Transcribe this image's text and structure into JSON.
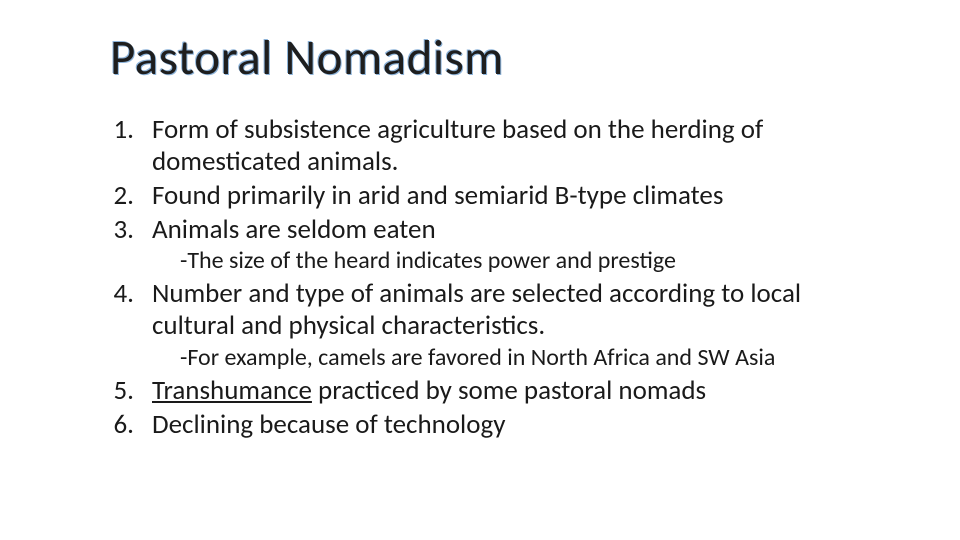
{
  "slide": {
    "title": "Pastoral Nomadism",
    "items": [
      {
        "number": "1.",
        "text": "Form of subsistence agriculture based on the herding of domesticated animals."
      },
      {
        "number": "2.",
        "text": "Found primarily in arid and semiarid B-type climates"
      },
      {
        "number": "3.",
        "text": "Animals are seldom eaten"
      }
    ],
    "sub1": "-The size of the heard indicates power and prestige",
    "items2": [
      {
        "number": "4.",
        "text": "Number and type of animals are selected according to local cultural and physical characteristics."
      }
    ],
    "sub2": "-For example, camels are favored in North Africa and SW Asia",
    "items3_prefix": {
      "number": "5."
    },
    "items3_underline": "Transhumance",
    "items3_suffix": " practiced by some pastoral nomads",
    "items4": [
      {
        "number": "6.",
        "text": "Declining because of technology"
      }
    ],
    "colors": {
      "background": "#ffffff",
      "title_text": "#1e1e1e",
      "title_outline": "#8db3d9",
      "body_text": "#1a1a1a"
    },
    "typography": {
      "title_fontsize": 49,
      "body_fontsize": 27,
      "sub_fontsize": 24,
      "font_family": "Calibri"
    }
  }
}
